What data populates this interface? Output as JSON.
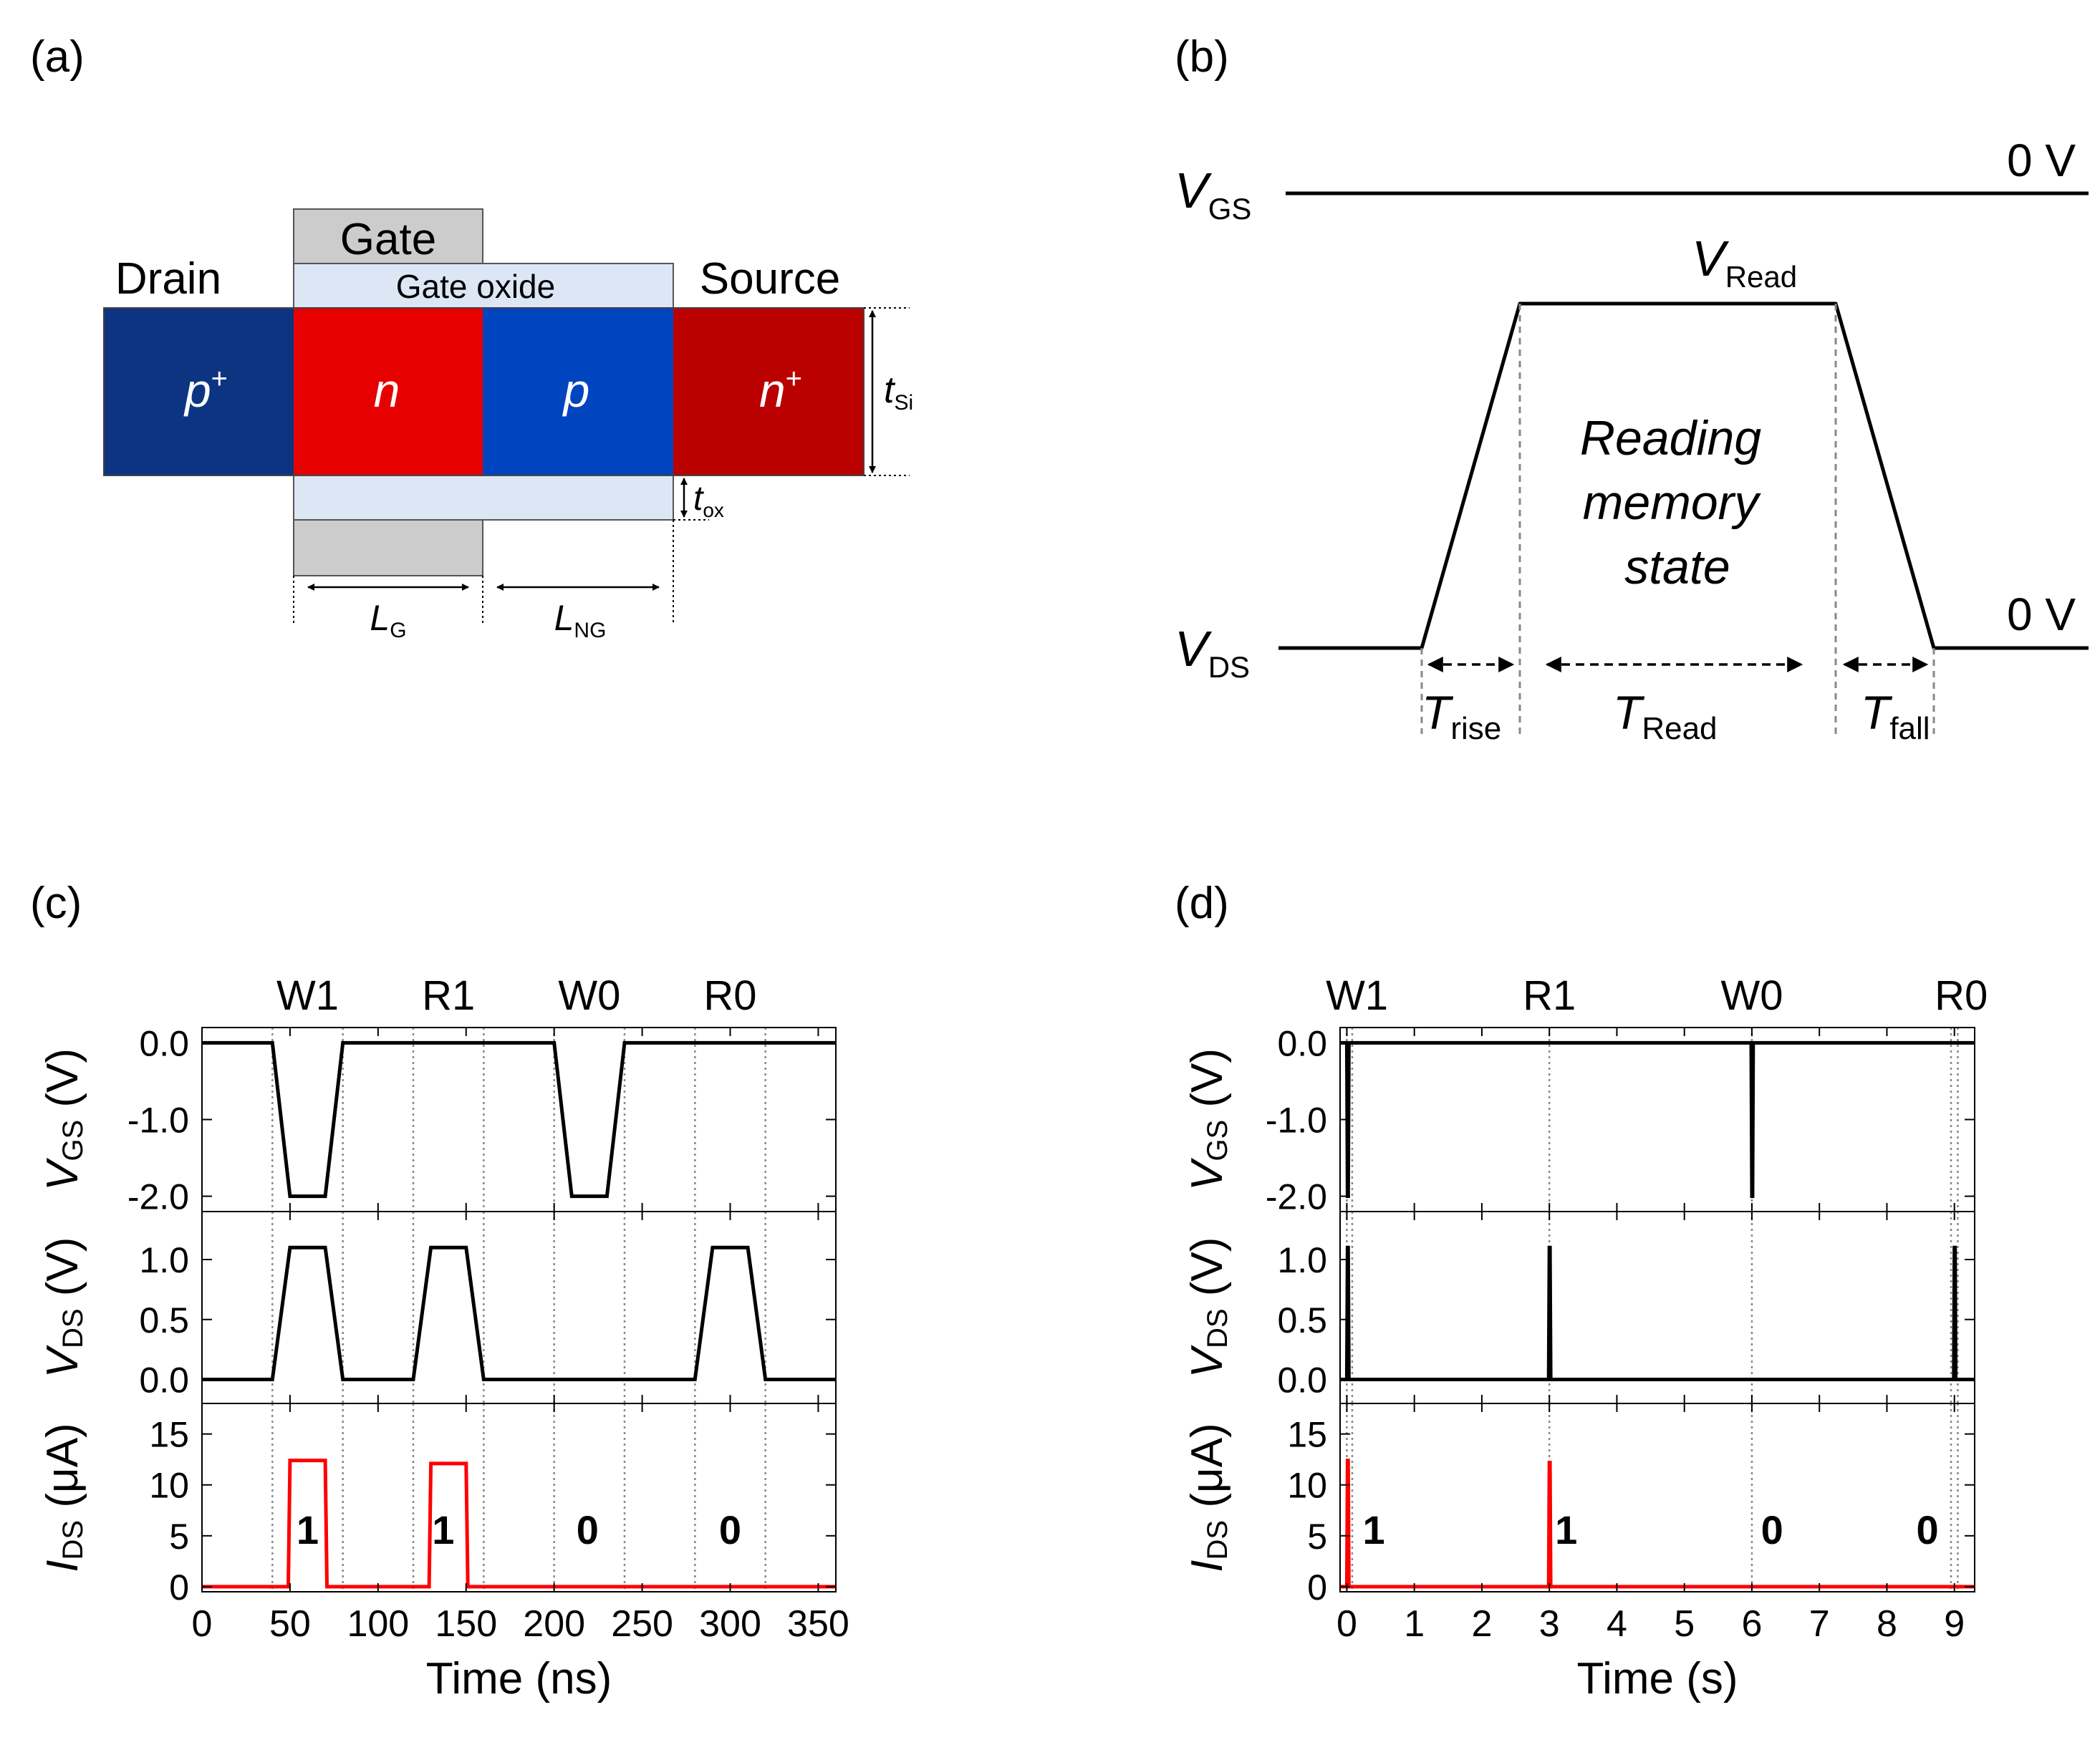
{
  "panels": {
    "a": {
      "label": "(a)",
      "gate": "Gate",
      "gate_oxide": "Gate oxide",
      "drain": "Drain",
      "source": "Source",
      "regions": [
        {
          "base": "p",
          "sup": "+",
          "color": "#0d3480"
        },
        {
          "base": "n",
          "sup": "",
          "color": "#e60000"
        },
        {
          "base": "p",
          "sup": "",
          "color": "#0044c0"
        },
        {
          "base": "n",
          "sup": "+",
          "color": "#bb0000"
        }
      ],
      "t_si": {
        "base": "t",
        "sub": "Si"
      },
      "t_ox": {
        "base": "t",
        "sub": "ox"
      },
      "L_g": {
        "base": "L",
        "sub": "G"
      },
      "L_ng": {
        "base": "L",
        "sub": "NG"
      },
      "colors": {
        "gate": "#cccccc",
        "oxide": "#dce6f4"
      }
    },
    "b": {
      "label": "(b)",
      "v_gs": {
        "base": "V",
        "sub": "GS"
      },
      "v_ds": {
        "base": "V",
        "sub": "DS"
      },
      "v_read": {
        "base": "V",
        "sub": "Read"
      },
      "zero_top": "0 V",
      "zero_bottom": "0 V",
      "reading": [
        "Reading",
        "memory",
        "state"
      ],
      "t_rise": {
        "base": "T",
        "sub": "rise"
      },
      "t_read": {
        "base": "T",
        "sub": "Read"
      },
      "t_fall": {
        "base": "T",
        "sub": "fall"
      }
    },
    "c": {
      "label": "(c)"
    },
    "d": {
      "label": "(d)"
    }
  },
  "chart_data": [
    {
      "id": "c",
      "type": "line",
      "xlabel": "Time (ns)",
      "xlim": [
        0,
        360
      ],
      "xticks": [
        0,
        50,
        100,
        150,
        200,
        250,
        300,
        350
      ],
      "xtick_labels": [
        "0",
        "50",
        "100",
        "150",
        "200",
        "250",
        "300",
        "350"
      ],
      "phase_labels": [
        {
          "text": "W1",
          "x": 60
        },
        {
          "text": "R1",
          "x": 140
        },
        {
          "text": "W0",
          "x": 220
        },
        {
          "text": "R0",
          "x": 300
        }
      ],
      "dotted_x": [
        40,
        80,
        120,
        160,
        200,
        240,
        280,
        320
      ],
      "subplots": [
        {
          "ylabel": {
            "base": "V",
            "sub": "GS",
            "unit": " (V)"
          },
          "ylim": [
            -2.2,
            0.2
          ],
          "yticks": [
            0,
            -1,
            -2
          ],
          "ytick_labels": [
            "0.0",
            "-1.0",
            "-2.0"
          ],
          "color": "#000000",
          "series": [
            [
              0,
              0
            ],
            [
              40,
              0
            ],
            [
              50,
              -2
            ],
            [
              70,
              -2
            ],
            [
              80,
              0
            ],
            [
              200,
              0
            ],
            [
              210,
              -2
            ],
            [
              230,
              -2
            ],
            [
              240,
              0
            ],
            [
              360,
              0
            ]
          ]
        },
        {
          "ylabel": {
            "base": "V",
            "sub": "DS",
            "unit": " (V)"
          },
          "ylim": [
            -0.2,
            1.4
          ],
          "yticks": [
            0,
            0.5,
            1
          ],
          "ytick_labels": [
            "0.0",
            "0.5",
            "1.0"
          ],
          "color": "#000000",
          "series": [
            [
              0,
              0
            ],
            [
              40,
              0
            ],
            [
              50,
              1.1
            ],
            [
              70,
              1.1
            ],
            [
              80,
              0
            ],
            [
              120,
              0
            ],
            [
              130,
              1.1
            ],
            [
              150,
              1.1
            ],
            [
              160,
              0
            ],
            [
              280,
              0
            ],
            [
              290,
              1.1
            ],
            [
              310,
              1.1
            ],
            [
              320,
              0
            ],
            [
              360,
              0
            ]
          ]
        },
        {
          "ylabel": {
            "base": "I",
            "sub": "DS",
            "unit": " (μA)"
          },
          "ylim": [
            -0.5,
            18
          ],
          "yticks": [
            0,
            5,
            10,
            15
          ],
          "ytick_labels": [
            "0",
            "5",
            "10",
            "15"
          ],
          "color": "#ff0000",
          "series": [
            [
              0,
              0
            ],
            [
              49,
              0
            ],
            [
              50,
              12.4
            ],
            [
              70,
              12.4
            ],
            [
              71,
              0
            ],
            [
              129,
              0
            ],
            [
              130,
              12.1
            ],
            [
              150,
              12.1
            ],
            [
              151,
              0
            ],
            [
              360,
              0
            ]
          ],
          "annotations": [
            {
              "text": "1",
              "x": 60,
              "y": 4.2
            },
            {
              "text": "1",
              "x": 137,
              "y": 4.2
            },
            {
              "text": "0",
              "x": 219,
              "y": 4.2
            },
            {
              "text": "0",
              "x": 300,
              "y": 4.2
            }
          ]
        }
      ]
    },
    {
      "id": "d",
      "type": "line",
      "xlabel": "Time (s)",
      "xlim": [
        -0.1,
        9.3
      ],
      "xticks": [
        0,
        1,
        2,
        3,
        4,
        5,
        6,
        7,
        8,
        9
      ],
      "xtick_labels": [
        "0",
        "1",
        "2",
        "3",
        "4",
        "5",
        "6",
        "7",
        "8",
        "9"
      ],
      "phase_labels": [
        {
          "text": "W1",
          "x": 0.15
        },
        {
          "text": "R1",
          "x": 3
        },
        {
          "text": "W0",
          "x": 6
        },
        {
          "text": "R0",
          "x": 9.1
        }
      ],
      "dotted_x": [
        0,
        0.08,
        3,
        6,
        8.95,
        9.05
      ],
      "subplots": [
        {
          "ylabel": {
            "base": "V",
            "sub": "GS",
            "unit": " (V)"
          },
          "ylim": [
            -2.2,
            0.2
          ],
          "yticks": [
            0,
            -1,
            -2
          ],
          "ytick_labels": [
            "0.0",
            "-1.0",
            "-2.0"
          ],
          "color": "#000000",
          "series": [
            [
              -0.1,
              0
            ],
            [
              0,
              0
            ],
            [
              0.01,
              -2
            ],
            [
              0.02,
              -2
            ],
            [
              0.03,
              0
            ],
            [
              5.99,
              0
            ],
            [
              6,
              -2
            ],
            [
              6.01,
              -2
            ],
            [
              6.02,
              0
            ],
            [
              9.3,
              0
            ]
          ]
        },
        {
          "ylabel": {
            "base": "V",
            "sub": "DS",
            "unit": " (V)"
          },
          "ylim": [
            -0.2,
            1.4
          ],
          "yticks": [
            0,
            0.5,
            1
          ],
          "ytick_labels": [
            "0.0",
            "0.5",
            "1.0"
          ],
          "color": "#000000",
          "series": [
            [
              -0.1,
              0
            ],
            [
              0,
              0
            ],
            [
              0.01,
              1.1
            ],
            [
              0.02,
              1.1
            ],
            [
              0.03,
              0
            ],
            [
              2.99,
              0
            ],
            [
              3,
              1.1
            ],
            [
              3.01,
              1.1
            ],
            [
              3.02,
              0
            ],
            [
              8.99,
              0
            ],
            [
              9,
              1.1
            ],
            [
              9.01,
              1.1
            ],
            [
              9.02,
              0
            ],
            [
              9.3,
              0
            ]
          ]
        },
        {
          "ylabel": {
            "base": "I",
            "sub": "DS",
            "unit": " (μA)"
          },
          "ylim": [
            -0.5,
            18
          ],
          "yticks": [
            0,
            5,
            10,
            15
          ],
          "ytick_labels": [
            "0",
            "5",
            "10",
            "15"
          ],
          "color": "#ff0000",
          "series": [
            [
              -0.1,
              0
            ],
            [
              0,
              0
            ],
            [
              0.01,
              12.4
            ],
            [
              0.02,
              12.4
            ],
            [
              0.03,
              0
            ],
            [
              2.99,
              0
            ],
            [
              3,
              12.2
            ],
            [
              3.01,
              12.2
            ],
            [
              3.02,
              0
            ],
            [
              9.3,
              0
            ]
          ],
          "annotations": [
            {
              "text": "1",
              "x": 0.4,
              "y": 4.2
            },
            {
              "text": "1",
              "x": 3.25,
              "y": 4.2
            },
            {
              "text": "0",
              "x": 6.3,
              "y": 4.2
            },
            {
              "text": "0",
              "x": 8.6,
              "y": 4.2
            }
          ]
        }
      ]
    }
  ]
}
